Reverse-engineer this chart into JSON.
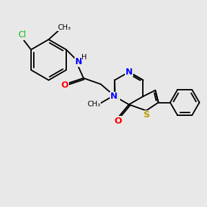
{
  "bg_color": "#e8e8e8",
  "bond_color": "#000000",
  "N_color": "#0000ff",
  "O_color": "#ff0000",
  "S_color": "#b8a000",
  "Cl_color": "#00bb00",
  "lw": 1.4,
  "figsize": [
    3.0,
    3.0
  ],
  "dpi": 100,
  "xlim": [
    0,
    10
  ],
  "ylim": [
    0,
    10
  ]
}
